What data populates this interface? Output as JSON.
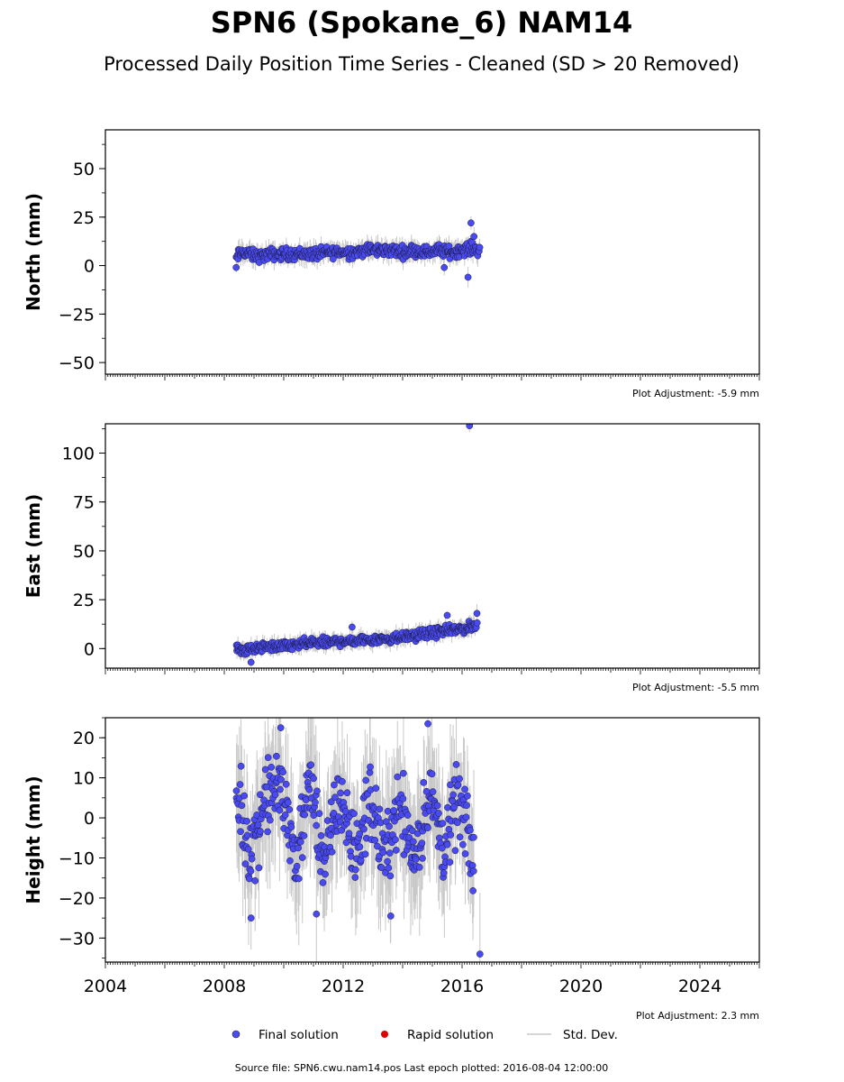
{
  "title": "SPN6 (Spokane_6) NAM14",
  "subtitle": "Processed Daily Position Time Series - Cleaned (SD > 20 Removed)",
  "legend": {
    "final": "Final solution",
    "rapid": "Rapid solution",
    "std": "Std. Dev."
  },
  "footer": "Source file: SPN6.cwu.nam14.pos  Last epoch plotted: 2016-08-04 12:00:00",
  "colors": {
    "final": "#4a4af2",
    "rapid": "#dd0000",
    "std": "#c8c8c8"
  },
  "chart_data": [
    {
      "type": "scatter",
      "ylabel": "North (mm)",
      "adjustment": "Plot Adjustment: -5.9 mm",
      "xlim": [
        2004,
        2026
      ],
      "ylim": [
        -56,
        70
      ],
      "yticks": [
        50,
        25,
        0,
        -25,
        -50
      ],
      "ytick_labels": [
        "50",
        "25",
        "0",
        "−25",
        "−50"
      ],
      "x": [
        2008.4,
        2008.5,
        2008.7,
        2009.0,
        2009.3,
        2009.6,
        2010.0,
        2010.4,
        2010.8,
        2011.2,
        2011.6,
        2012.0,
        2012.4,
        2012.8,
        2013.2,
        2013.6,
        2014.0,
        2014.4,
        2014.8,
        2015.2,
        2015.6,
        2016.0,
        2016.3,
        2016.6
      ],
      "y": [
        3,
        6,
        7,
        5,
        5,
        6,
        6,
        6,
        6,
        6,
        7,
        7,
        7,
        8,
        8,
        8,
        7,
        8,
        7,
        8,
        7,
        8,
        9,
        8
      ],
      "spread": 3,
      "outliers": [
        [
          2016.3,
          22
        ],
        [
          2016.2,
          -6
        ],
        [
          2008.4,
          -1
        ],
        [
          2015.4,
          -1
        ],
        [
          2016.4,
          15
        ]
      ]
    },
    {
      "type": "scatter",
      "ylabel": "East (mm)",
      "adjustment": "Plot Adjustment: -5.5 mm",
      "xlim": [
        2004,
        2026
      ],
      "ylim": [
        -10,
        115
      ],
      "yticks": [
        100,
        75,
        50,
        25,
        0
      ],
      "ytick_labels": [
        "100",
        "75",
        "50",
        "25",
        "0"
      ],
      "x": [
        2008.4,
        2008.7,
        2009.0,
        2009.5,
        2010.0,
        2010.5,
        2011.0,
        2011.5,
        2012.0,
        2012.5,
        2013.0,
        2013.5,
        2014.0,
        2014.5,
        2015.0,
        2015.5,
        2016.0,
        2016.5
      ],
      "y": [
        0,
        -1,
        0,
        1,
        1,
        2,
        3,
        3,
        4,
        4,
        5,
        5,
        6,
        7,
        8,
        9,
        10,
        12
      ],
      "spread": 2.5,
      "outliers": [
        [
          2016.25,
          114
        ],
        [
          2008.9,
          -7
        ],
        [
          2012.3,
          11
        ],
        [
          2016.5,
          18
        ],
        [
          2015.5,
          17
        ]
      ]
    },
    {
      "type": "scatter",
      "ylabel": "Height (mm)",
      "adjustment": "Plot Adjustment: 2.3 mm",
      "xlim": [
        2004,
        2026
      ],
      "ylim": [
        -36,
        25
      ],
      "yticks": [
        20,
        10,
        0,
        -10,
        -20,
        -30
      ],
      "ytick_labels": [
        "20",
        "10",
        "0",
        "−10",
        "−20",
        "−30"
      ],
      "xticks": [
        2004,
        2008,
        2012,
        2016,
        2020,
        2024
      ],
      "x": [
        2008.4,
        2008.9,
        2009.4,
        2009.9,
        2010.4,
        2010.9,
        2011.4,
        2011.9,
        2012.4,
        2012.9,
        2013.4,
        2013.9,
        2014.4,
        2014.9,
        2015.4,
        2015.9,
        2016.4
      ],
      "y": [
        5,
        -8,
        5,
        8,
        -10,
        8,
        -12,
        6,
        -10,
        5,
        -10,
        5,
        -10,
        6,
        -8,
        5,
        -12
      ],
      "spread": 9,
      "outliers": [
        [
          2014.85,
          23.5
        ],
        [
          2016.6,
          -34
        ],
        [
          2009.9,
          22.5
        ],
        [
          2013.6,
          -24.5
        ],
        [
          2008.9,
          -25
        ],
        [
          2011.1,
          -24
        ]
      ]
    }
  ]
}
